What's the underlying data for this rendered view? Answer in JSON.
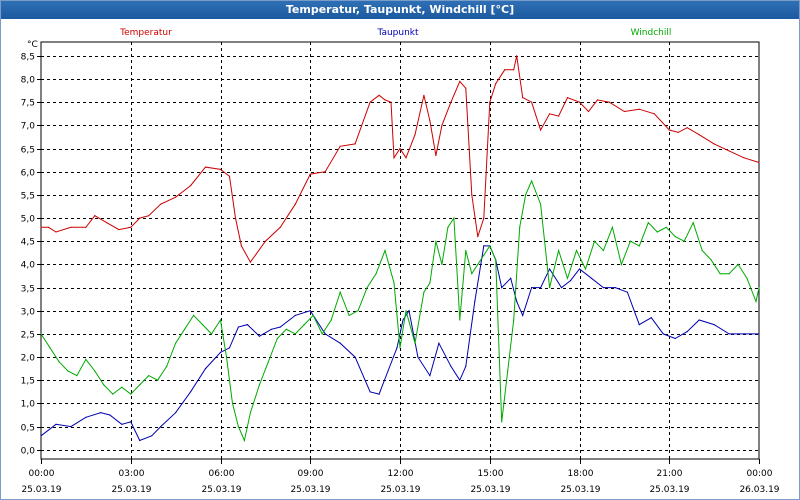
{
  "window": {
    "title": "Temperatur, Taupunkt, Windchill [°C]"
  },
  "chart_data": {
    "type": "line",
    "title": "Temperatur, Taupunkt, Windchill [°C]",
    "ylabel": "°C",
    "ylim": [
      -0.2,
      8.8
    ],
    "xlim": [
      0,
      24
    ],
    "grid": true,
    "y_ticks": [
      "0,0",
      "0,5",
      "1,0",
      "1,5",
      "2,0",
      "2,5",
      "3,0",
      "3,5",
      "4,0",
      "4,5",
      "5,0",
      "5,5",
      "6,0",
      "6,5",
      "7,0",
      "7,5",
      "8,0",
      "8,5"
    ],
    "x_ticks": [
      {
        "time": "00:00",
        "date": "25.03.19"
      },
      {
        "time": "03:00",
        "date": "25.03.19"
      },
      {
        "time": "06:00",
        "date": "25.03.19"
      },
      {
        "time": "09:00",
        "date": "25.03.19"
      },
      {
        "time": "12:00",
        "date": "25.03.19"
      },
      {
        "time": "15:00",
        "date": "25.03.19"
      },
      {
        "time": "18:00",
        "date": "25.03.19"
      },
      {
        "time": "21:00",
        "date": "25.03.19"
      },
      {
        "time": "00:00",
        "date": "26.03.19"
      }
    ],
    "series": [
      {
        "name": "Temperatur",
        "color": "#cc0000",
        "x": [
          0,
          0.25,
          0.5,
          1.0,
          1.5,
          1.8,
          2.2,
          2.6,
          3.0,
          3.3,
          3.6,
          4.0,
          4.5,
          5.0,
          5.5,
          6.0,
          6.3,
          6.5,
          6.7,
          7.0,
          7.5,
          8.0,
          8.5,
          9.0,
          9.5,
          10.0,
          10.5,
          11.0,
          11.3,
          11.5,
          11.7,
          11.8,
          12.0,
          12.2,
          12.5,
          12.8,
          13.0,
          13.2,
          13.4,
          13.7,
          14.0,
          14.2,
          14.4,
          14.6,
          14.8,
          15.0,
          15.2,
          15.5,
          15.8,
          15.9,
          16.1,
          16.4,
          16.7,
          17.0,
          17.3,
          17.6,
          18.0,
          18.3,
          18.6,
          19.0,
          19.5,
          20.0,
          20.5,
          21.0,
          21.3,
          21.6,
          22.0,
          22.5,
          23.0,
          23.5,
          24.0
        ],
        "values": [
          4.8,
          4.8,
          4.7,
          4.8,
          4.8,
          5.05,
          4.9,
          4.75,
          4.8,
          5.0,
          5.05,
          5.3,
          5.45,
          5.7,
          6.1,
          6.05,
          5.9,
          5.0,
          4.4,
          4.05,
          4.5,
          4.8,
          5.3,
          5.95,
          6.0,
          6.55,
          6.6,
          7.5,
          7.65,
          7.55,
          7.5,
          6.3,
          6.5,
          6.3,
          6.8,
          7.65,
          7.1,
          6.35,
          7.0,
          7.5,
          7.95,
          7.8,
          5.5,
          4.6,
          5.0,
          7.5,
          7.9,
          8.2,
          8.2,
          8.5,
          7.6,
          7.5,
          6.9,
          7.25,
          7.2,
          7.6,
          7.5,
          7.3,
          7.55,
          7.5,
          7.3,
          7.35,
          7.25,
          6.9,
          6.85,
          6.95,
          6.8,
          6.6,
          6.45,
          6.3,
          6.2
        ]
      },
      {
        "name": "Taupunkt",
        "color": "#0000b0",
        "x": [
          0,
          0.5,
          1.0,
          1.5,
          2.0,
          2.3,
          2.7,
          3.0,
          3.3,
          3.7,
          4.0,
          4.5,
          5.0,
          5.5,
          6.0,
          6.3,
          6.6,
          6.9,
          7.3,
          7.7,
          8.0,
          8.5,
          9.0,
          9.5,
          10.0,
          10.5,
          11.0,
          11.3,
          11.6,
          11.9,
          12.1,
          12.3,
          12.6,
          13.0,
          13.3,
          13.7,
          14.0,
          14.2,
          14.5,
          14.8,
          15.0,
          15.2,
          15.4,
          15.7,
          15.9,
          16.1,
          16.4,
          16.7,
          17.0,
          17.4,
          17.7,
          18.0,
          18.4,
          18.8,
          19.2,
          19.6,
          20.0,
          20.4,
          20.8,
          21.2,
          21.6,
          22.0,
          22.5,
          23.0,
          23.5,
          24.0
        ],
        "values": [
          0.3,
          0.55,
          0.5,
          0.7,
          0.8,
          0.75,
          0.55,
          0.6,
          0.2,
          0.3,
          0.5,
          0.8,
          1.25,
          1.75,
          2.1,
          2.2,
          2.65,
          2.7,
          2.45,
          2.6,
          2.65,
          2.9,
          3.0,
          2.5,
          2.3,
          2.0,
          1.25,
          1.2,
          1.7,
          2.2,
          2.8,
          3.0,
          2.0,
          1.6,
          2.3,
          1.8,
          1.5,
          1.8,
          3.2,
          4.4,
          4.4,
          4.1,
          3.5,
          3.7,
          3.2,
          2.9,
          3.5,
          3.5,
          3.9,
          3.5,
          3.65,
          3.9,
          3.7,
          3.5,
          3.5,
          3.4,
          2.7,
          2.85,
          2.5,
          2.4,
          2.55,
          2.8,
          2.7,
          2.5,
          2.5,
          2.5
        ]
      },
      {
        "name": "Windchill",
        "color": "#00aa00",
        "x": [
          0,
          0.3,
          0.6,
          0.9,
          1.2,
          1.5,
          1.8,
          2.1,
          2.4,
          2.7,
          3.0,
          3.3,
          3.6,
          3.9,
          4.2,
          4.5,
          4.8,
          5.1,
          5.4,
          5.7,
          6.0,
          6.2,
          6.4,
          6.6,
          6.8,
          7.0,
          7.3,
          7.6,
          7.9,
          8.2,
          8.5,
          8.8,
          9.1,
          9.4,
          9.7,
          10.0,
          10.3,
          10.6,
          10.9,
          11.2,
          11.5,
          11.8,
          12.0,
          12.2,
          12.5,
          12.8,
          13.0,
          13.2,
          13.4,
          13.6,
          13.8,
          14.0,
          14.2,
          14.4,
          14.6,
          14.8,
          15.0,
          15.2,
          15.4,
          15.6,
          15.8,
          16.0,
          16.2,
          16.4,
          16.7,
          17.0,
          17.3,
          17.6,
          17.9,
          18.2,
          18.5,
          18.8,
          19.1,
          19.4,
          19.7,
          20.0,
          20.3,
          20.6,
          20.9,
          21.2,
          21.5,
          21.8,
          22.1,
          22.4,
          22.7,
          23.0,
          23.3,
          23.6,
          23.9,
          24.0
        ],
        "values": [
          2.5,
          2.2,
          1.9,
          1.7,
          1.6,
          1.95,
          1.7,
          1.4,
          1.2,
          1.35,
          1.2,
          1.4,
          1.6,
          1.5,
          1.8,
          2.3,
          2.6,
          2.9,
          2.7,
          2.5,
          2.8,
          2.0,
          1.0,
          0.5,
          0.2,
          0.8,
          1.4,
          1.9,
          2.4,
          2.6,
          2.5,
          2.7,
          2.9,
          2.5,
          2.8,
          3.4,
          2.9,
          3.0,
          3.5,
          3.8,
          4.3,
          3.6,
          2.2,
          3.0,
          2.3,
          3.4,
          3.6,
          4.5,
          4.0,
          4.8,
          5.0,
          2.8,
          4.3,
          3.8,
          4.0,
          4.2,
          4.4,
          4.1,
          0.6,
          1.7,
          2.8,
          4.8,
          5.5,
          5.8,
          5.3,
          3.5,
          4.3,
          3.7,
          4.3,
          3.9,
          4.5,
          4.3,
          4.8,
          4.0,
          4.5,
          4.4,
          4.9,
          4.7,
          4.8,
          4.6,
          4.5,
          4.9,
          4.3,
          4.1,
          3.8,
          3.8,
          4.0,
          3.7,
          3.2,
          3.5
        ]
      }
    ]
  }
}
